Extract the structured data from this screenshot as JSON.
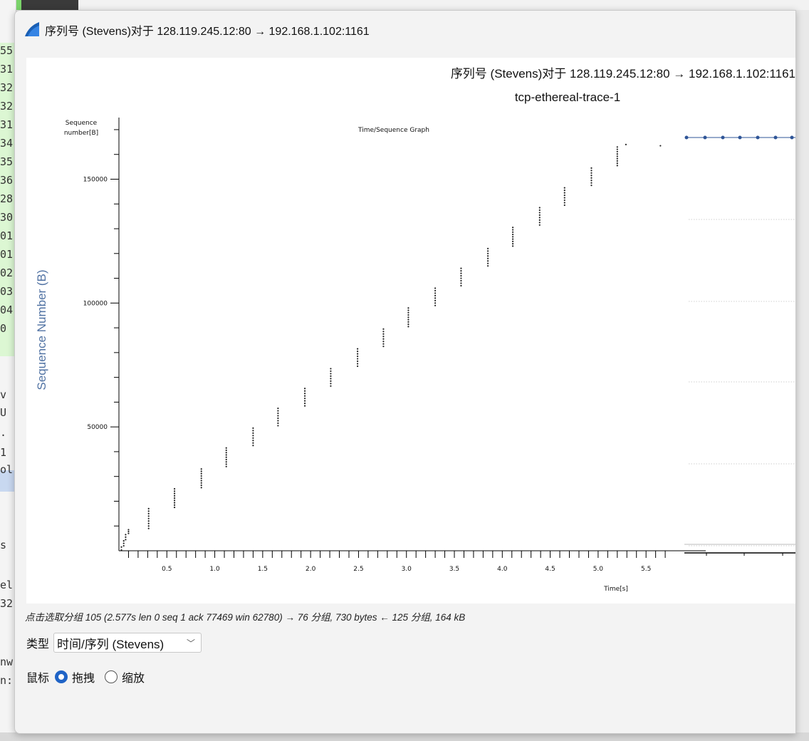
{
  "window": {
    "title": "序列号 (Stevens)对于 128.119.245.12:80 → 192.168.1.102:1161"
  },
  "background": {
    "left_fragments": [
      "55",
      "31",
      "32",
      "32",
      "31",
      "34",
      "35",
      "36",
      "28",
      "30",
      "01",
      "01",
      "02",
      "03",
      "04",
      "0",
      "v",
      "U",
      ".",
      "1",
      "ol",
      "s",
      "el",
      "32",
      "nw",
      "n:"
    ]
  },
  "plot": {
    "header_title": "序列号 (Stevens)对于 128.119.245.12:80 → 192.168.1.102:1161",
    "header_subtitle": "tcp-ethereal-trace-1",
    "side_ylabel": "Sequence Number (B)"
  },
  "chart_data": {
    "type": "scatter",
    "title": "Time/Sequence Graph",
    "xlabel": "Time[s]",
    "ylabel": "Sequence number[B]",
    "xlim": [
      0,
      5.9
    ],
    "ylim": [
      0,
      172000
    ],
    "x_ticks": [
      "0.5",
      "1.0",
      "1.5",
      "2.0",
      "2.5",
      "3.0",
      "3.5",
      "4.0",
      "4.5",
      "5.0",
      "5.5"
    ],
    "y_ticks": [
      "50000",
      "100000",
      "150000"
    ],
    "grid": false,
    "clusters": [
      {
        "t": 0.026,
        "seq_start": 300,
        "seq_end": 1500
      },
      {
        "t": 0.05,
        "seq_start": 2000,
        "seq_end": 4000
      },
      {
        "t": 0.07,
        "seq_start": 4500,
        "seq_end": 6500
      },
      {
        "t": 0.1,
        "seq_start": 7000,
        "seq_end": 8500
      },
      {
        "t": 0.31,
        "seq_start": 9000,
        "seq_end": 17000
      },
      {
        "t": 0.58,
        "seq_start": 17500,
        "seq_end": 25000
      },
      {
        "t": 0.86,
        "seq_start": 25500,
        "seq_end": 33000
      },
      {
        "t": 1.12,
        "seq_start": 34000,
        "seq_end": 41500
      },
      {
        "t": 1.4,
        "seq_start": 42500,
        "seq_end": 49500
      },
      {
        "t": 1.66,
        "seq_start": 50500,
        "seq_end": 57500
      },
      {
        "t": 1.94,
        "seq_start": 58500,
        "seq_end": 65500
      },
      {
        "t": 2.21,
        "seq_start": 66500,
        "seq_end": 73500
      },
      {
        "t": 2.49,
        "seq_start": 74500,
        "seq_end": 81500
      },
      {
        "t": 2.76,
        "seq_start": 82500,
        "seq_end": 89500
      },
      {
        "t": 3.02,
        "seq_start": 90500,
        "seq_end": 98000
      },
      {
        "t": 3.3,
        "seq_start": 99000,
        "seq_end": 106000
      },
      {
        "t": 3.57,
        "seq_start": 107000,
        "seq_end": 114000
      },
      {
        "t": 3.85,
        "seq_start": 115000,
        "seq_end": 122000
      },
      {
        "t": 4.11,
        "seq_start": 123000,
        "seq_end": 130500
      },
      {
        "t": 4.39,
        "seq_start": 131500,
        "seq_end": 138500
      },
      {
        "t": 4.65,
        "seq_start": 139500,
        "seq_end": 146500
      },
      {
        "t": 4.93,
        "seq_start": 147500,
        "seq_end": 154500
      },
      {
        "t": 5.2,
        "seq_start": 155500,
        "seq_end": 163000
      },
      {
        "t": 5.29,
        "seq_start": 164000,
        "seq_end": 164000
      },
      {
        "t": 5.65,
        "seq_start": 163500,
        "seq_end": 163500
      }
    ]
  },
  "status": {
    "text": "点击选取分组 105 (2.577s len 0 seq 1 ack 77469 win 62780) → 76 分组, 730 bytes ← 125 分组, 164 kB"
  },
  "controls": {
    "type_label": "类型",
    "type_value": "时间/序列 (Stevens)",
    "mouse_label": "鼠标",
    "drag_label": "拖拽",
    "zoom_label": "缩放",
    "drag_selected": true
  },
  "colors": {
    "accent": "#1f63c6",
    "side_plot_line": "#2f5597",
    "ylabel": "#5072a3"
  }
}
